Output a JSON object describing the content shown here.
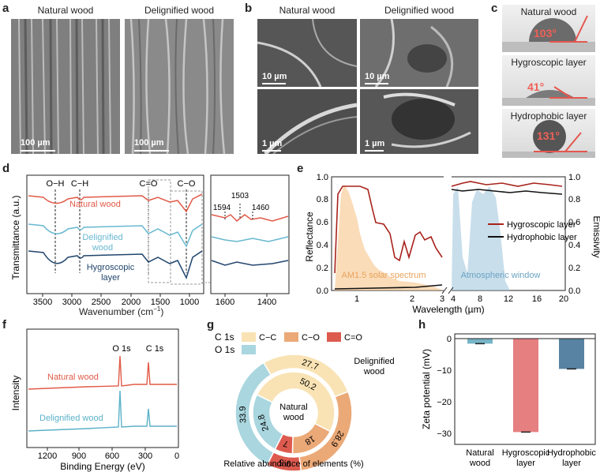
{
  "panels": {
    "a": {
      "label": "a",
      "images": [
        {
          "caption": "Natural wood",
          "scale": "100 µm"
        },
        {
          "caption": "Delignified wood",
          "scale": "100 µm"
        }
      ]
    },
    "b": {
      "label": "b",
      "captions": [
        "Natural wood",
        "Delignified wood"
      ],
      "scales": [
        "10 µm",
        "10 µm",
        "1 µm",
        "1 µm"
      ]
    },
    "c": {
      "label": "c",
      "items": [
        {
          "name": "Natural wood",
          "angle": "103°"
        },
        {
          "name": "Hygroscopic layer",
          "angle": "41°"
        },
        {
          "name": "Hydrophobic layer",
          "angle": "131°"
        }
      ]
    },
    "d": {
      "label": "d",
      "ylabel": "Transmittance (a.u.)",
      "xlabel": "Wavenumber (cm",
      "xlabel_sup": "−1",
      "xlabel_end": ")",
      "ticks_main": [
        "3500",
        "3000",
        "2500",
        "2000",
        "1500",
        "1000"
      ],
      "ticks_zoom": [
        "1600",
        "1400"
      ],
      "bands": [
        "O−H",
        "C−H",
        "C=O",
        "C−O"
      ],
      "zoom_peaks": [
        "1594",
        "1503",
        "1460"
      ],
      "series": [
        "Natural wood",
        "Delignified",
        "wood",
        "Hygroscopic",
        "layer"
      ]
    },
    "e": {
      "label": "e",
      "ylabel_left": "Reflectance",
      "ylabel_right": "Emissivity",
      "xlabel": "Wavelength (µm)",
      "yticks": [
        "0.0",
        "0.2",
        "0.4",
        "0.6",
        "0.8",
        "1.0"
      ],
      "xticks_left": [
        "1",
        "2",
        "3"
      ],
      "xticks_right": [
        "4",
        "8",
        "12",
        "16",
        "20"
      ],
      "legend": [
        "Hygroscopic layer",
        "Hydrophobic layer"
      ],
      "annotations": [
        "AM1.5 solar spectrum",
        "Atmospheric window"
      ]
    },
    "f": {
      "label": "f",
      "ylabel": "Intensity",
      "xlabel": "Binding Energy (eV)",
      "ticks": [
        "1200",
        "900",
        "600",
        "300",
        "0"
      ],
      "peaks": [
        "O 1s",
        "C 1s"
      ],
      "series": [
        "Natural wood",
        "Delignified wood"
      ]
    },
    "g": {
      "label": "g",
      "legend_c": "C 1s",
      "legend_o": "O 1s",
      "legend_items": [
        "C−C",
        "C−O",
        "C=O"
      ],
      "center": [
        "Natural",
        "wood"
      ],
      "outer_label": [
        "Delignified",
        "wood"
      ],
      "caption": "Relative abundance of elements (%)"
    },
    "h": {
      "label": "h",
      "ylabel": "Zeta potential (mV)",
      "yticks": [
        "0",
        "−10",
        "−20",
        "−30"
      ],
      "categories": [
        [
          "Natural",
          "wood"
        ],
        [
          "Hygroscopic",
          "layer"
        ],
        [
          "Hydrophobic",
          "layer"
        ]
      ]
    }
  },
  "chart_data": [
    {
      "type": "pie",
      "panel": "g",
      "ring": "inner (Natural wood)",
      "categories": [
        "O 1s",
        "C−C",
        "C−O",
        "C=O"
      ],
      "values": [
        24.8,
        50.2,
        18,
        7
      ],
      "colors": [
        "#a9d6df",
        "#f9e3b4",
        "#eba977",
        "#dd5a4f"
      ]
    },
    {
      "type": "pie",
      "panel": "g",
      "ring": "outer (Delignified wood)",
      "categories": [
        "O 1s",
        "C−C",
        "C−O",
        "C=O"
      ],
      "values": [
        33.9,
        27.7,
        28.9,
        9.5
      ],
      "colors": [
        "#a9d6df",
        "#f9e3b4",
        "#eba977",
        "#dd5a4f"
      ]
    },
    {
      "type": "bar",
      "panel": "h",
      "categories": [
        "Natural wood",
        "Hygroscopic layer",
        "Hydrophobic layer"
      ],
      "values": [
        -1.6,
        -29.6,
        -9.6
      ],
      "ylim": [
        -35,
        0
      ],
      "colors": [
        "#5fa7bd",
        "#e0686a",
        "#3b6d92"
      ]
    }
  ]
}
